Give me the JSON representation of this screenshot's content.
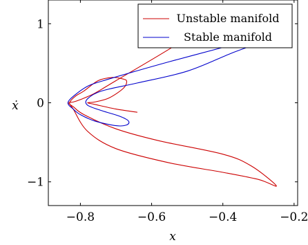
{
  "chart_data": {
    "type": "line",
    "xlabel": "x",
    "ylabel": "ẋ",
    "xlim": [
      -0.89,
      -0.19
    ],
    "ylim": [
      -1.3,
      1.3
    ],
    "x_ticks": [
      -0.8,
      -0.6,
      -0.4,
      -0.2
    ],
    "x_tick_labels": [
      "−0.8",
      "−0.6",
      "−0.4",
      "−0.2"
    ],
    "y_ticks": [
      -1,
      0,
      1
    ],
    "y_tick_labels": [
      "−1",
      "0",
      "1"
    ],
    "grid": false,
    "legend_position": "top-right",
    "series": [
      {
        "name": "Unstable manifold",
        "color": "#cc0000",
        "points": [
          [
            -0.42,
            1.05
          ],
          [
            -0.55,
            0.68
          ],
          [
            -0.7,
            0.28
          ],
          [
            -0.76,
            0.12
          ],
          [
            -0.8,
            0.04
          ],
          [
            -0.82,
            0.01
          ],
          [
            -0.835,
            0.0
          ],
          [
            -0.82,
            -0.05
          ],
          [
            -0.79,
            -0.15
          ],
          [
            -0.7,
            -0.33
          ],
          [
            -0.58,
            -0.48
          ],
          [
            -0.4,
            -0.65
          ],
          [
            -0.32,
            -0.8
          ],
          [
            -0.25,
            -1.05
          ],
          [
            -0.3,
            -0.97
          ],
          [
            -0.4,
            -0.88
          ],
          [
            -0.55,
            -0.76
          ],
          [
            -0.7,
            -0.58
          ],
          [
            -0.78,
            -0.36
          ],
          [
            -0.82,
            -0.08
          ],
          [
            -0.83,
            0.0
          ],
          [
            -0.815,
            0.08
          ],
          [
            -0.79,
            0.15
          ],
          [
            -0.75,
            0.28
          ],
          [
            -0.71,
            0.32
          ],
          [
            -0.68,
            0.3
          ],
          [
            -0.67,
            0.27
          ],
          [
            -0.68,
            0.18
          ],
          [
            -0.72,
            0.06
          ],
          [
            -0.76,
            0.01
          ],
          [
            -0.78,
            0.0
          ],
          [
            -0.76,
            -0.02
          ],
          [
            -0.7,
            -0.08
          ],
          [
            -0.64,
            -0.12
          ]
        ]
      },
      {
        "name": "Stable manifold",
        "color": "#0000cc",
        "points": [
          [
            -0.4,
            0.7
          ],
          [
            -0.55,
            0.52
          ],
          [
            -0.66,
            0.38
          ],
          [
            -0.72,
            0.3
          ],
          [
            -0.775,
            0.22
          ],
          [
            -0.815,
            0.1
          ],
          [
            -0.835,
            0.0
          ],
          [
            -0.82,
            -0.08
          ],
          [
            -0.8,
            -0.15
          ],
          [
            -0.76,
            -0.23
          ],
          [
            -0.7,
            -0.29
          ],
          [
            -0.67,
            -0.28
          ],
          [
            -0.665,
            -0.23
          ],
          [
            -0.69,
            -0.17
          ],
          [
            -0.74,
            -0.1
          ],
          [
            -0.78,
            -0.03
          ],
          [
            -0.78,
            0.05
          ],
          [
            -0.74,
            0.15
          ],
          [
            -0.64,
            0.25
          ],
          [
            -0.5,
            0.4
          ],
          [
            -0.38,
            0.62
          ],
          [
            -0.32,
            0.72
          ]
        ]
      }
    ]
  }
}
